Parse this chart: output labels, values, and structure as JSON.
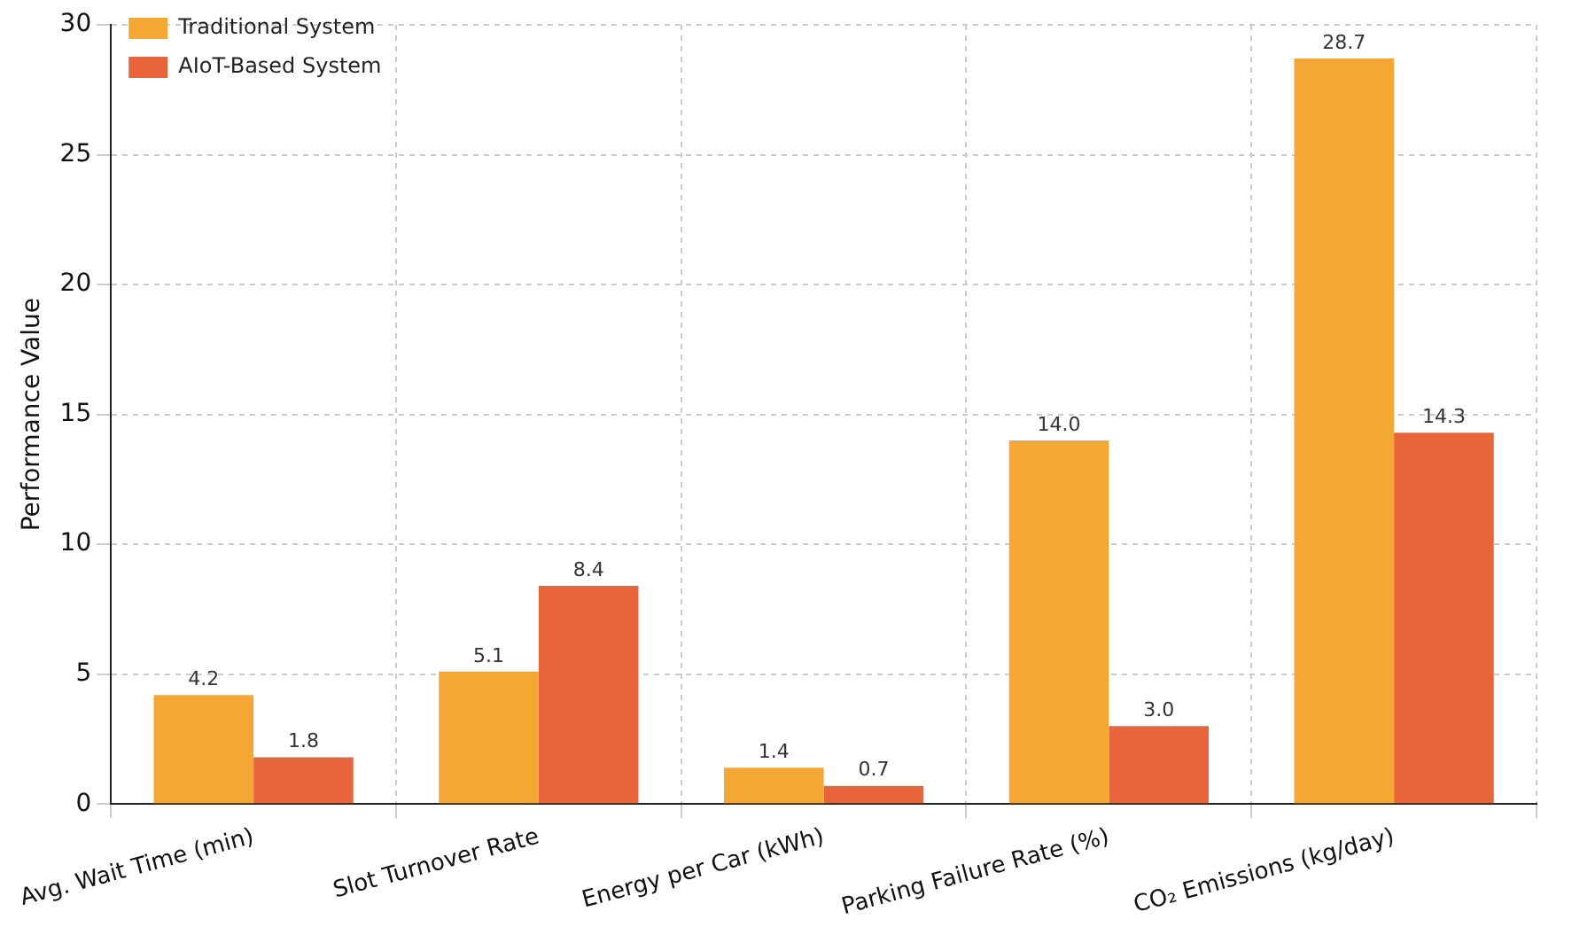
{
  "chart_data": {
    "type": "bar",
    "ylabel": "Performance Value",
    "categories": [
      "Avg. Wait Time (min)",
      "Slot Turnover Rate",
      "Energy per Car (kWh)",
      "Parking Failure Rate (%)",
      "CO₂ Emissions (kg/day)"
    ],
    "series": [
      {
        "name": "Traditional System",
        "color": "#f5a733",
        "values": [
          4.2,
          5.1,
          1.4,
          14.0,
          28.7
        ],
        "value_labels": [
          "4.2",
          "5.1",
          "1.4",
          "14.0",
          "28.7"
        ]
      },
      {
        "name": "AIoT-Based System",
        "color": "#e8643a",
        "values": [
          1.8,
          8.4,
          0.7,
          3.0,
          14.3
        ],
        "value_labels": [
          "1.8",
          "8.4",
          "0.7",
          "3.0",
          "14.3"
        ]
      }
    ],
    "ylim": [
      0,
      30
    ],
    "yticks": [
      0,
      5,
      10,
      15,
      20,
      25,
      30
    ],
    "grid": true,
    "legend": "top left"
  }
}
